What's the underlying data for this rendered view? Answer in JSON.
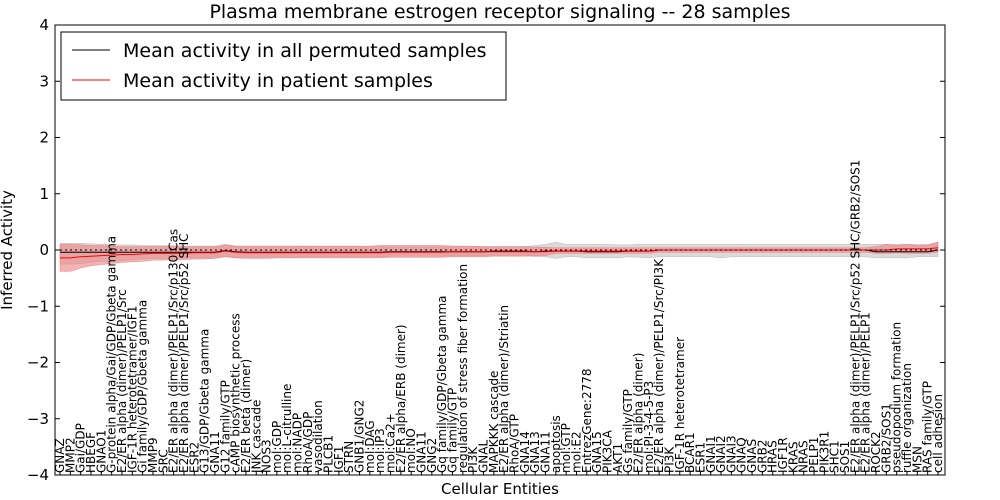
{
  "chart_data": {
    "type": "line",
    "title": "Plasma membrane estrogen receptor signaling -- 28 samples",
    "xlabel": "Cellular Entities",
    "ylabel": "Inferred Activity",
    "ylim": [
      -4,
      4
    ],
    "yticks": [
      -4,
      -3,
      -2,
      -1,
      0,
      1,
      2,
      3,
      4
    ],
    "legend_position": "top-left",
    "categories": [
      "GNAZ",
      "MMP2",
      "Gai/GDP",
      "HBEGF",
      "GNAO1",
      "G-protein alpha/Gai/GDP/Gbeta gamma",
      "E2/ER alpha (dimer)/PELP1/Src",
      "IGF-1R heterotetramer/IGF1",
      "Gi family/GDP/Gbeta gamma",
      "MMP9",
      "SRC",
      "E2/ER alpha (dimer)/PELP1/Src/p130 Cas",
      "E2/ER alpha (dimer)/PELP1/Src/p52 SHC",
      "ESR2",
      "G13/GDP/Gbeta gamma",
      "GNA11",
      "G12 family/GTP",
      "cAMP biosynthetic process",
      "E2/ER beta (dimer)",
      "JNK cascade",
      "NOS3",
      "mol:GDP",
      "mol:L-citrulline",
      "mol:NADP",
      "RhoA/GDP",
      "vasodilation",
      "PLCB1",
      "IGF1",
      "STRN",
      "GNB1/GNG2",
      "mol:DAG",
      "mol:IP3",
      "mol:Ca2+",
      "E2/ER alpha/ERB (dimer)",
      "mol:NO",
      "GNA11",
      "GNG2",
      "Gq family/GDP/Gbeta gamma",
      "Gq family/GTP",
      "regulation of stress fiber formation",
      "PI3K",
      "GNAL",
      "MAPKKK cascade",
      "E2/ER alpha (dimer)/Striatin",
      "RhoA/GTP",
      "GNA14",
      "GNA13",
      "GNA11",
      "apoptosis",
      "mol:GTP",
      "mol:E2",
      "EntrezGene:2778",
      "GNA15",
      "PIK3CA",
      "AKT1",
      "Gs family/GTP",
      "E2/ER alpha (dimer)",
      "mol:PI-3-4-5-P3",
      "E2/ER alpha (dimer)/PELP1/Src/PI3K",
      "PI3K",
      "IGF-1R heterotetramer",
      "BCAR1",
      "ESR1",
      "GNAI1",
      "GNAI2",
      "GNAI3",
      "GNAQ",
      "GNAS",
      "GRB2",
      "HRAS",
      "IGF1R",
      "KRAS",
      "NRAS",
      "PELP1",
      "PIK3R1",
      "SHC1",
      "SOS1",
      "E2/ER alpha (dimer)/PELP1/Src/p52 SHC/GRB2/SOS1",
      "E2/ER alpha (dimer)/PELP1",
      "ROCK2",
      "GRB2/SOS1",
      "pseudopodium formation",
      "ruffle organization",
      "MSN",
      "RAS family/GTP",
      "cell adhesion"
    ],
    "series": [
      {
        "name": "Mean activity in all permuted samples",
        "color": "#000000",
        "band_color": "#bbbbbb",
        "values": [
          -0.04,
          -0.04,
          -0.04,
          -0.04,
          -0.04,
          -0.04,
          -0.04,
          -0.04,
          -0.04,
          -0.04,
          -0.04,
          -0.04,
          -0.04,
          -0.04,
          -0.04,
          -0.04,
          -0.01,
          -0.03,
          -0.04,
          -0.04,
          -0.04,
          -0.04,
          -0.04,
          -0.04,
          -0.04,
          -0.04,
          -0.04,
          -0.04,
          -0.04,
          -0.04,
          -0.04,
          -0.04,
          -0.03,
          -0.03,
          -0.03,
          -0.03,
          -0.03,
          -0.03,
          -0.03,
          -0.03,
          -0.03,
          -0.03,
          -0.02,
          -0.02,
          -0.02,
          -0.02,
          -0.03,
          -0.02,
          -0.02,
          -0.02,
          -0.02,
          -0.03,
          -0.03,
          -0.03,
          -0.03,
          -0.02,
          -0.02,
          -0.02,
          0.0,
          0.0,
          0.0,
          0.0,
          0.0,
          0.0,
          0.0,
          0.0,
          0.0,
          0.0,
          0.0,
          0.0,
          0.0,
          0.0,
          0.0,
          0.0,
          0.0,
          0.0,
          0.0,
          0.0,
          0.0,
          -0.03,
          -0.03,
          -0.03,
          -0.03,
          -0.03,
          -0.03,
          0.0
        ],
        "lower": [
          -0.25,
          -0.25,
          -0.24,
          -0.22,
          -0.2,
          -0.2,
          -0.19,
          -0.17,
          -0.16,
          -0.15,
          -0.15,
          -0.15,
          -0.14,
          -0.14,
          -0.14,
          -0.13,
          -0.12,
          -0.13,
          -0.13,
          -0.13,
          -0.13,
          -0.13,
          -0.13,
          -0.13,
          -0.12,
          -0.12,
          -0.12,
          -0.12,
          -0.12,
          -0.12,
          -0.12,
          -0.12,
          -0.11,
          -0.11,
          -0.11,
          -0.11,
          -0.11,
          -0.11,
          -0.1,
          -0.1,
          -0.1,
          -0.1,
          -0.1,
          -0.1,
          -0.1,
          -0.1,
          -0.12,
          -0.12,
          -0.15,
          -0.12,
          -0.12,
          -0.14,
          -0.14,
          -0.14,
          -0.14,
          -0.12,
          -0.13,
          -0.14,
          -0.12,
          -0.12,
          -0.12,
          -0.12,
          -0.12,
          -0.12,
          -0.14,
          -0.12,
          -0.12,
          -0.12,
          -0.12,
          -0.12,
          -0.12,
          -0.12,
          -0.12,
          -0.12,
          -0.12,
          -0.12,
          -0.12,
          -0.12,
          -0.12,
          -0.14,
          -0.14,
          -0.14,
          -0.14,
          -0.12,
          -0.12,
          -0.12
        ],
        "upper": [
          0.12,
          0.12,
          0.12,
          0.11,
          0.1,
          0.1,
          0.09,
          0.09,
          0.08,
          0.08,
          0.08,
          0.08,
          0.07,
          0.07,
          0.07,
          0.07,
          0.08,
          0.07,
          0.07,
          0.07,
          0.07,
          0.07,
          0.07,
          0.07,
          0.06,
          0.06,
          0.06,
          0.06,
          0.06,
          0.06,
          0.06,
          0.06,
          0.06,
          0.06,
          0.06,
          0.06,
          0.06,
          0.06,
          0.06,
          0.06,
          0.06,
          0.06,
          0.06,
          0.06,
          0.06,
          0.06,
          0.08,
          0.1,
          0.14,
          0.1,
          0.1,
          0.1,
          0.1,
          0.1,
          0.09,
          0.09,
          0.1,
          0.1,
          0.1,
          0.1,
          0.1,
          0.1,
          0.1,
          0.1,
          0.1,
          0.1,
          0.1,
          0.1,
          0.1,
          0.1,
          0.1,
          0.1,
          0.1,
          0.1,
          0.1,
          0.1,
          0.1,
          0.1,
          0.1,
          0.1,
          0.1,
          0.1,
          0.1,
          0.1,
          0.1,
          0.14
        ]
      },
      {
        "name": "Mean activity in patient samples",
        "color": "#ff0000",
        "band_color": "#f08080",
        "values": [
          -0.14,
          -0.14,
          -0.12,
          -0.11,
          -0.1,
          -0.09,
          -0.08,
          -0.08,
          -0.07,
          -0.06,
          -0.06,
          -0.06,
          -0.06,
          -0.05,
          -0.05,
          -0.05,
          -0.02,
          -0.04,
          -0.05,
          -0.05,
          -0.05,
          -0.05,
          -0.05,
          -0.05,
          -0.05,
          -0.05,
          -0.05,
          -0.05,
          -0.05,
          -0.05,
          -0.05,
          -0.05,
          -0.04,
          -0.04,
          -0.04,
          -0.04,
          -0.04,
          -0.04,
          -0.03,
          -0.03,
          -0.03,
          -0.03,
          -0.03,
          -0.03,
          -0.03,
          -0.03,
          -0.03,
          -0.03,
          -0.02,
          -0.02,
          -0.02,
          -0.02,
          -0.02,
          -0.02,
          -0.02,
          -0.02,
          -0.02,
          -0.02,
          0.0,
          0.0,
          0.0,
          0.0,
          0.0,
          0.0,
          0.0,
          0.0,
          0.0,
          0.0,
          0.0,
          0.0,
          0.0,
          0.0,
          0.0,
          0.0,
          0.0,
          0.0,
          0.0,
          0.0,
          0.0,
          0.0,
          0.0,
          0.02,
          0.02,
          0.02,
          0.02,
          0.04
        ],
        "lower": [
          -0.38,
          -0.38,
          -0.32,
          -0.28,
          -0.26,
          -0.24,
          -0.22,
          -0.21,
          -0.2,
          -0.18,
          -0.18,
          -0.17,
          -0.17,
          -0.16,
          -0.16,
          -0.15,
          -0.12,
          -0.14,
          -0.15,
          -0.15,
          -0.15,
          -0.14,
          -0.14,
          -0.14,
          -0.14,
          -0.14,
          -0.14,
          -0.14,
          -0.14,
          -0.14,
          -0.14,
          -0.14,
          -0.13,
          -0.13,
          -0.13,
          -0.13,
          -0.13,
          -0.13,
          -0.12,
          -0.12,
          -0.12,
          -0.12,
          -0.11,
          -0.11,
          -0.11,
          -0.11,
          -0.1,
          -0.1,
          -0.06,
          -0.06,
          -0.06,
          -0.06,
          -0.06,
          -0.06,
          -0.06,
          -0.06,
          -0.06,
          -0.06,
          -0.04,
          -0.04,
          -0.04,
          -0.04,
          -0.04,
          -0.04,
          -0.04,
          -0.04,
          -0.04,
          -0.04,
          -0.04,
          -0.04,
          -0.04,
          -0.04,
          -0.04,
          -0.04,
          -0.04,
          -0.04,
          -0.04,
          -0.04,
          -0.04,
          -0.06,
          -0.06,
          -0.05,
          -0.06,
          -0.06,
          -0.06,
          -0.04
        ],
        "upper": [
          0.1,
          0.1,
          0.09,
          0.08,
          0.08,
          0.07,
          0.06,
          0.06,
          0.06,
          0.06,
          0.06,
          0.06,
          0.06,
          0.06,
          0.06,
          0.06,
          0.1,
          0.07,
          0.07,
          0.07,
          0.07,
          0.07,
          0.07,
          0.07,
          0.07,
          0.07,
          0.07,
          0.07,
          0.07,
          0.07,
          0.07,
          0.08,
          0.08,
          0.08,
          0.08,
          0.08,
          0.08,
          0.08,
          0.07,
          0.07,
          0.07,
          0.06,
          0.06,
          0.06,
          0.06,
          0.06,
          0.05,
          0.05,
          0.04,
          0.04,
          0.04,
          0.04,
          0.04,
          0.04,
          0.04,
          0.04,
          0.04,
          0.04,
          0.04,
          0.04,
          0.04,
          0.04,
          0.04,
          0.04,
          0.04,
          0.04,
          0.04,
          0.04,
          0.04,
          0.04,
          0.04,
          0.04,
          0.04,
          0.04,
          0.04,
          0.04,
          0.04,
          0.04,
          0.04,
          0.06,
          0.1,
          0.08,
          0.1,
          0.08,
          0.08,
          0.14
        ]
      }
    ]
  }
}
